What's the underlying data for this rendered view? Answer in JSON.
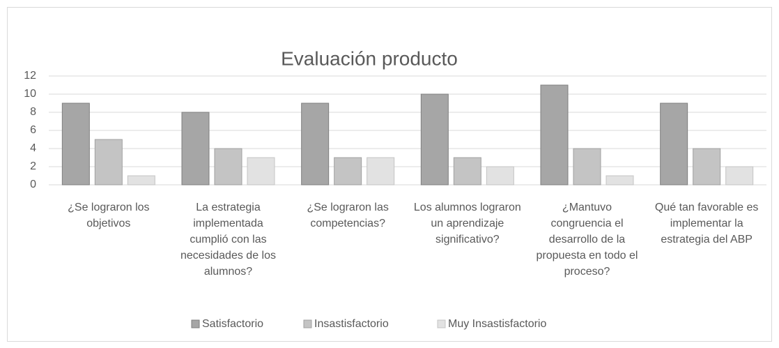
{
  "chart_data": {
    "type": "bar",
    "title": "Evaluación producto",
    "categories": [
      "¿Se lograron los objetivos",
      "La estrategia implementada cumplió con las necesidades de los alumnos?",
      "¿Se lograron las competencias?",
      "Los alumnos lograron un aprendizaje significativo?",
      "¿Mantuvo congruencia el desarrollo de la propuesta en todo el proceso?",
      "Qué tan favorable es implementar la estrategia del ABP"
    ],
    "series": [
      {
        "name": "Satisfactorio",
        "color": "#a6a6a6",
        "values": [
          9,
          8,
          9,
          10,
          11,
          9
        ]
      },
      {
        "name": "Insastisfactorio",
        "color": "#c4c4c4",
        "values": [
          5,
          4,
          3,
          3,
          4,
          4
        ]
      },
      {
        "name": "Muy Insastisfactorio",
        "color": "#e2e2e2",
        "values": [
          1,
          3,
          3,
          2,
          1,
          2
        ]
      }
    ],
    "ylim": [
      0,
      12
    ],
    "yticks": [
      0,
      2,
      4,
      6,
      8,
      10,
      12
    ],
    "grid": true,
    "legend": "bottom"
  }
}
